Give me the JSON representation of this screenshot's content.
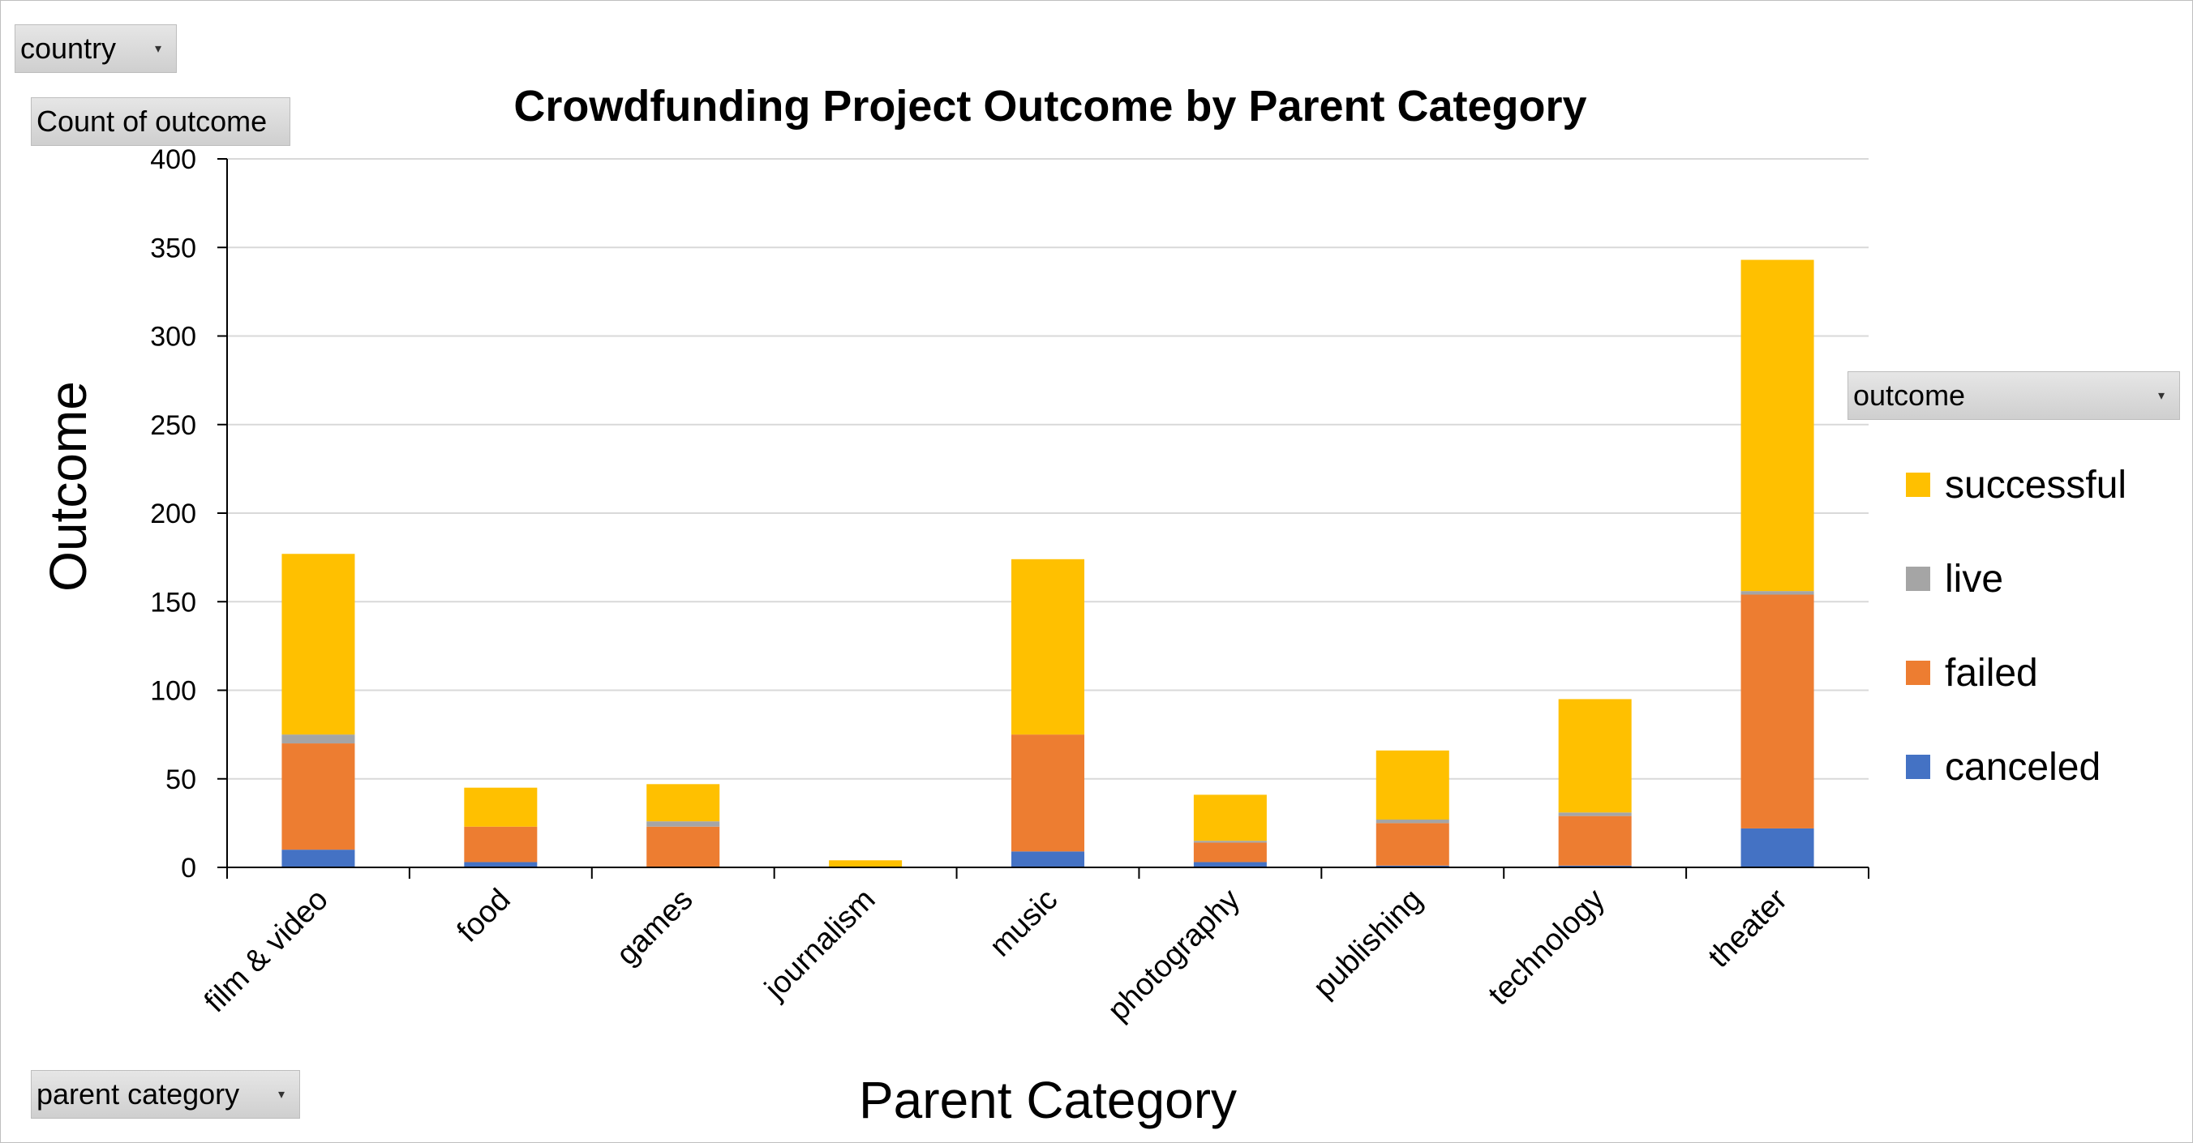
{
  "filters": {
    "country_label": "country",
    "values_label": "Count of outcome",
    "outcome_label": "outcome",
    "category_label": "parent category"
  },
  "chart_data": {
    "type": "bar",
    "stacked": true,
    "title": "Crowdfunding Project Outcome by Parent Category",
    "xlabel": "Parent Category",
    "ylabel": "Outcome",
    "ylim": [
      0,
      400
    ],
    "yticks": [
      0,
      50,
      100,
      150,
      200,
      250,
      300,
      350,
      400
    ],
    "grid": true,
    "legend_position": "right",
    "categories": [
      "film & video",
      "food",
      "games",
      "journalism",
      "music",
      "photography",
      "publishing",
      "technology",
      "theater"
    ],
    "series": [
      {
        "name": "canceled",
        "color": "#4472C4",
        "values": [
          10,
          3,
          0,
          0,
          9,
          3,
          1,
          1,
          22
        ]
      },
      {
        "name": "failed",
        "color": "#ED7D31",
        "values": [
          60,
          20,
          23,
          0,
          66,
          11,
          24,
          28,
          132
        ]
      },
      {
        "name": "live",
        "color": "#A5A5A5",
        "values": [
          5,
          0,
          3,
          0,
          0,
          1,
          2,
          2,
          2
        ]
      },
      {
        "name": "successful",
        "color": "#FFC000",
        "values": [
          102,
          22,
          21,
          4,
          99,
          26,
          39,
          64,
          187
        ]
      }
    ],
    "legend_order": [
      "successful",
      "live",
      "failed",
      "canceled"
    ]
  }
}
